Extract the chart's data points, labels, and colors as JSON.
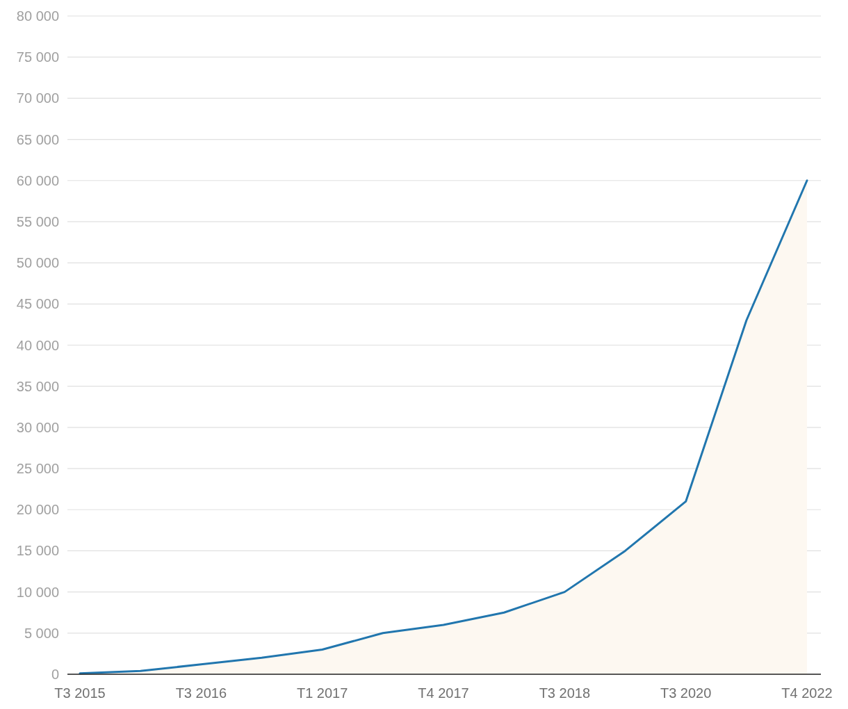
{
  "chart_data": {
    "type": "area",
    "categories": [
      "T3 2015",
      null,
      "T3 2016",
      null,
      "T1 2017",
      null,
      "T4 2017",
      null,
      "T3 2018",
      null,
      "T3 2020",
      null,
      "T4 2022"
    ],
    "series": [
      {
        "color": "#2176ae",
        "values": [
          100,
          400,
          1200,
          2000,
          3000,
          5000,
          6000,
          7500,
          10000,
          15000,
          21000,
          43000,
          60000
        ]
      }
    ],
    "ylim": [
      0,
      80000
    ],
    "yticks": [
      0,
      {
        "value": 5000,
        "label": "5 000"
      },
      {
        "value": 10000,
        "label": "10 000"
      },
      {
        "value": 15000,
        "label": "15 000"
      },
      {
        "value": 20000,
        "label": "20 000"
      },
      {
        "value": 25000,
        "label": "25 000"
      },
      {
        "value": 30000,
        "label": "30 000"
      },
      {
        "value": 35000,
        "label": "35 000"
      },
      {
        "value": 40000,
        "label": "40 000"
      },
      {
        "value": 45000,
        "label": "45 000"
      },
      {
        "value": 50000,
        "label": "50 000"
      },
      {
        "value": 55000,
        "label": "55 000"
      },
      {
        "value": 60000,
        "label": "60 000"
      },
      {
        "value": 65000,
        "label": "65 000"
      },
      {
        "value": 70000,
        "label": "70 000"
      },
      {
        "value": 75000,
        "label": "75 000"
      },
      {
        "value": 80000,
        "label": "80 000"
      }
    ],
    "grid": "y",
    "marker": "none"
  }
}
